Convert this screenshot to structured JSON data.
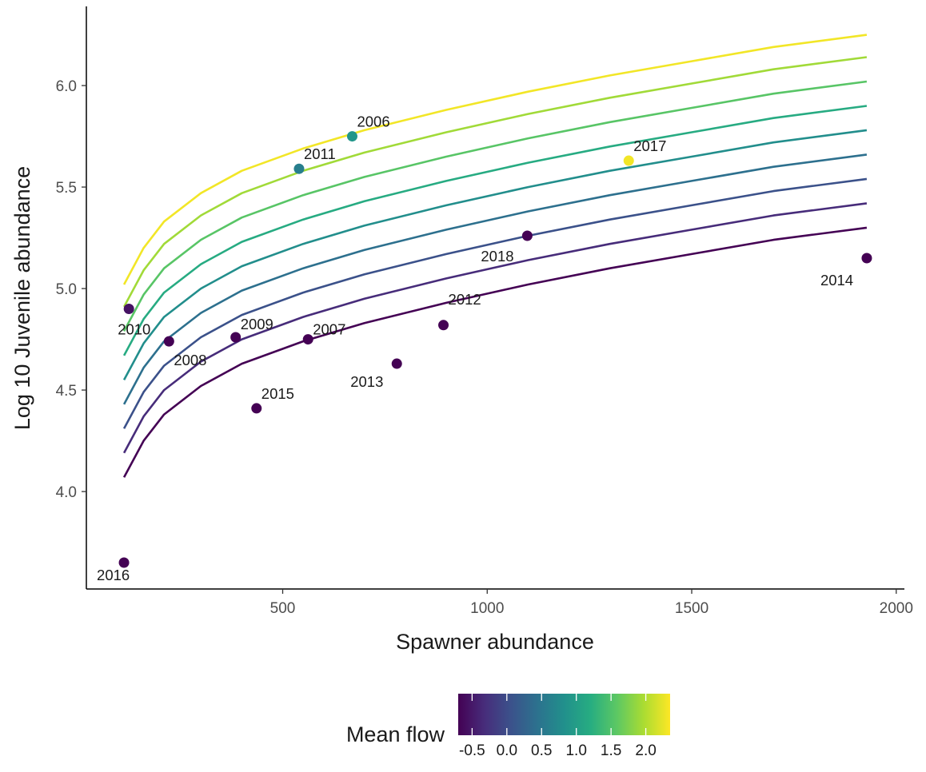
{
  "chart_data": {
    "type": "scatter",
    "title": "",
    "xlabel": "Spawner abundance",
    "ylabel": "Log 10 Juvenile abundance",
    "xlim": [
      20,
      2020
    ],
    "ylim": [
      3.52,
      6.39
    ],
    "x_ticks": [
      500,
      1000,
      1500,
      2000
    ],
    "x_tick_labels": [
      "500",
      "1000",
      "1500",
      "2000"
    ],
    "y_ticks": [
      4.0,
      4.5,
      5.0,
      5.5,
      6.0
    ],
    "y_tick_labels": [
      "4.0",
      "4.5",
      "5.0",
      "5.5",
      "6.0"
    ],
    "grid": false,
    "points": [
      {
        "label": "2006",
        "x": 670,
        "y": 5.75,
        "flow": 0.9
      },
      {
        "label": "2007",
        "x": 562,
        "y": 4.75,
        "flow": -0.7
      },
      {
        "label": "2008",
        "x": 222,
        "y": 4.74,
        "flow": -0.7
      },
      {
        "label": "2009",
        "x": 385,
        "y": 4.76,
        "flow": -0.7
      },
      {
        "label": "2010",
        "x": 124,
        "y": 4.9,
        "flow": -0.55
      },
      {
        "label": "2011",
        "x": 540,
        "y": 5.59,
        "flow": 0.6
      },
      {
        "label": "2012",
        "x": 893,
        "y": 4.82,
        "flow": -0.7
      },
      {
        "label": "2013",
        "x": 779,
        "y": 4.63,
        "flow": -0.7
      },
      {
        "label": "2014",
        "x": 1928,
        "y": 5.15,
        "flow": -0.7
      },
      {
        "label": "2015",
        "x": 436,
        "y": 4.41,
        "flow": -0.7
      },
      {
        "label": "2016",
        "x": 112,
        "y": 3.65,
        "flow": -0.7
      },
      {
        "label": "2017",
        "x": 1346,
        "y": 5.63,
        "flow": 2.3
      },
      {
        "label": "2018",
        "x": 1098,
        "y": 5.26,
        "flow": -0.7
      }
    ],
    "curves": {
      "x": [
        112,
        160,
        210,
        300,
        400,
        550,
        700,
        900,
        1100,
        1300,
        1500,
        1700,
        1928
      ],
      "series": [
        {
          "flow": -0.7,
          "y": [
            4.07,
            4.25,
            4.38,
            4.52,
            4.63,
            4.74,
            4.83,
            4.93,
            5.02,
            5.1,
            5.17,
            5.24,
            5.3
          ]
        },
        {
          "flow": -0.325,
          "y": [
            4.19,
            4.37,
            4.5,
            4.64,
            4.75,
            4.86,
            4.95,
            5.05,
            5.14,
            5.22,
            5.29,
            5.36,
            5.42
          ]
        },
        {
          "flow": 0.05,
          "y": [
            4.31,
            4.49,
            4.62,
            4.76,
            4.87,
            4.98,
            5.07,
            5.17,
            5.26,
            5.34,
            5.41,
            5.48,
            5.54
          ]
        },
        {
          "flow": 0.425,
          "y": [
            4.43,
            4.61,
            4.74,
            4.88,
            4.99,
            5.1,
            5.19,
            5.29,
            5.38,
            5.46,
            5.53,
            5.6,
            5.66
          ]
        },
        {
          "flow": 0.8,
          "y": [
            4.55,
            4.73,
            4.86,
            5.0,
            5.11,
            5.22,
            5.31,
            5.41,
            5.5,
            5.58,
            5.65,
            5.72,
            5.78
          ]
        },
        {
          "flow": 1.175,
          "y": [
            4.67,
            4.85,
            4.98,
            5.12,
            5.23,
            5.34,
            5.43,
            5.53,
            5.62,
            5.7,
            5.77,
            5.84,
            5.9
          ]
        },
        {
          "flow": 1.55,
          "y": [
            4.79,
            4.97,
            5.1,
            5.24,
            5.35,
            5.46,
            5.55,
            5.65,
            5.74,
            5.82,
            5.89,
            5.96,
            6.02
          ]
        },
        {
          "flow": 1.925,
          "y": [
            4.91,
            5.09,
            5.22,
            5.36,
            5.47,
            5.58,
            5.67,
            5.77,
            5.86,
            5.94,
            6.01,
            6.08,
            6.14
          ]
        },
        {
          "flow": 2.3,
          "y": [
            5.02,
            5.2,
            5.33,
            5.47,
            5.58,
            5.69,
            5.78,
            5.88,
            5.97,
            6.05,
            6.12,
            6.19,
            6.25
          ]
        }
      ]
    },
    "legend": {
      "title": "Mean flow",
      "placement": "bottom",
      "range": [
        -0.7,
        2.35
      ],
      "ticks": [
        -0.5,
        0.0,
        0.5,
        1.0,
        1.5,
        2.0
      ],
      "tick_labels": [
        "-0.5",
        "0.0",
        "0.5",
        "1.0",
        "1.5",
        "2.0"
      ],
      "colors": [
        "#440154",
        "#472D7B",
        "#3B528B",
        "#2C728E",
        "#21908C",
        "#27AD81",
        "#5DC863",
        "#AADC32",
        "#FDE725"
      ]
    }
  }
}
